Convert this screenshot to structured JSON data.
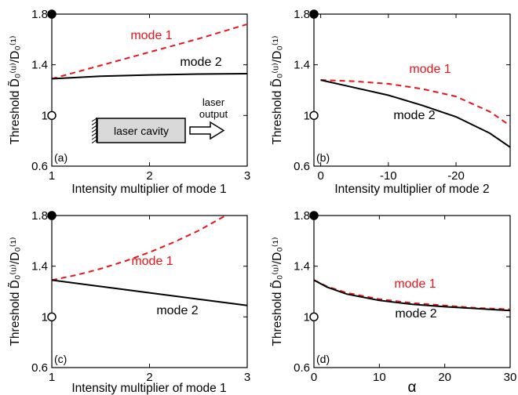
{
  "figure": {
    "ylabel": "Threshold D̃₀⁽ᵘ⁾/D₀⁽¹⁾"
  },
  "chart_data": [
    {
      "type": "line",
      "panel": "(a)",
      "xlabel": "Intensity multiplier of mode 1",
      "ylabel": "Threshold D̃₀⁽ᵘ⁾/D₀⁽¹⁾",
      "xlim": [
        1,
        3
      ],
      "ylim": [
        0.6,
        1.8
      ],
      "xticks": [
        1,
        2,
        3
      ],
      "xtick_labels": [
        "1",
        "2",
        "3"
      ],
      "yticks": [
        0.6,
        1,
        1.4,
        1.8
      ],
      "ytick_labels": [
        "0.6",
        "1",
        "1.4",
        "1.8"
      ],
      "series": [
        {
          "name": "mode 1",
          "color": "#e8141a",
          "style": "dashed",
          "x": [
            1,
            1.5,
            2,
            2.5,
            3
          ],
          "y": [
            1.29,
            1.395,
            1.5,
            1.605,
            1.72
          ]
        },
        {
          "name": "mode 2",
          "color": "#000000",
          "style": "solid",
          "x": [
            1,
            1.5,
            2,
            2.5,
            3
          ],
          "y": [
            1.29,
            1.31,
            1.32,
            1.327,
            1.33
          ]
        }
      ],
      "markers": [
        {
          "x": 1,
          "y": 1.8,
          "fill": "filled"
        },
        {
          "x": 1,
          "y": 1.0,
          "fill": "open"
        }
      ],
      "annotations": {
        "mode1": "mode 1",
        "mode2": "mode 2",
        "cavity": "laser cavity",
        "output_line1": "laser",
        "output_line2": "output"
      }
    },
    {
      "type": "line",
      "panel": "(b)",
      "xlabel": "Intensity multiplier of mode 2",
      "ylabel": "Threshold D̃₀⁽ᵘ⁾/D₀⁽¹⁾",
      "xlim": [
        1,
        -28
      ],
      "ylim": [
        0.6,
        1.8
      ],
      "xticks": [
        0,
        -10,
        -20
      ],
      "xtick_labels": [
        "0",
        "-10",
        "-20"
      ],
      "yticks": [
        0.6,
        1,
        1.4,
        1.8
      ],
      "ytick_labels": [
        "0.6",
        "1",
        "1.4",
        "1.8"
      ],
      "series": [
        {
          "name": "mode 1",
          "color": "#e8141a",
          "style": "dashed",
          "x": [
            0,
            -5,
            -10,
            -15,
            -20,
            -25,
            -28
          ],
          "y": [
            1.28,
            1.27,
            1.25,
            1.21,
            1.15,
            1.03,
            0.92
          ]
        },
        {
          "name": "mode 2",
          "color": "#000000",
          "style": "solid",
          "x": [
            0,
            -5,
            -10,
            -15,
            -20,
            -25,
            -28
          ],
          "y": [
            1.28,
            1.22,
            1.16,
            1.08,
            0.99,
            0.86,
            0.75
          ]
        }
      ],
      "markers": [
        {
          "x": 1,
          "y": 1.8,
          "fill": "filled"
        },
        {
          "x": 1,
          "y": 1.0,
          "fill": "open"
        }
      ],
      "annotations": {
        "mode1": "mode 1",
        "mode2": "mode 2"
      }
    },
    {
      "type": "line",
      "panel": "(c)",
      "xlabel": "Intensity multiplier of mode 1",
      "ylabel": "Threshold D̃₀⁽ᵘ⁾/D₀⁽¹⁾",
      "xlim": [
        1,
        3
      ],
      "ylim": [
        0.6,
        1.8
      ],
      "xticks": [
        1,
        2,
        3
      ],
      "xtick_labels": [
        "1",
        "2",
        "3"
      ],
      "yticks": [
        0.6,
        1,
        1.4,
        1.8
      ],
      "ytick_labels": [
        "0.6",
        "1",
        "1.4",
        "1.8"
      ],
      "series": [
        {
          "name": "mode 1",
          "color": "#e8141a",
          "style": "dashed",
          "x": [
            1,
            1.25,
            1.5,
            1.75,
            2,
            2.25,
            2.5,
            2.78
          ],
          "y": [
            1.29,
            1.33,
            1.38,
            1.44,
            1.51,
            1.59,
            1.68,
            1.8
          ]
        },
        {
          "name": "mode 2",
          "color": "#000000",
          "style": "solid",
          "x": [
            1,
            1.5,
            2,
            2.5,
            3
          ],
          "y": [
            1.29,
            1.24,
            1.19,
            1.14,
            1.09
          ]
        }
      ],
      "markers": [
        {
          "x": 1,
          "y": 1.8,
          "fill": "filled"
        },
        {
          "x": 1,
          "y": 1.0,
          "fill": "open"
        }
      ],
      "annotations": {
        "mode1": "mode 1",
        "mode2": "mode 2"
      }
    },
    {
      "type": "line",
      "panel": "(d)",
      "xlabel": "α",
      "ylabel": "Threshold D̃₀⁽ᵘ⁾/D₀⁽¹⁾",
      "xlim": [
        0,
        30
      ],
      "ylim": [
        0.6,
        1.8
      ],
      "xticks": [
        0,
        10,
        20,
        30
      ],
      "xtick_labels": [
        "0",
        "10",
        "20",
        "30"
      ],
      "yticks": [
        0.6,
        1,
        1.4,
        1.8
      ],
      "ytick_labels": [
        "0.6",
        "1",
        "1.4",
        "1.8"
      ],
      "series": [
        {
          "name": "mode 1",
          "color": "#e8141a",
          "style": "dashed",
          "x": [
            0,
            2,
            5,
            10,
            15,
            20,
            25,
            30
          ],
          "y": [
            1.29,
            1.24,
            1.19,
            1.14,
            1.11,
            1.09,
            1.07,
            1.06
          ]
        },
        {
          "name": "mode 2",
          "color": "#000000",
          "style": "solid",
          "x": [
            0,
            2,
            5,
            10,
            15,
            20,
            25,
            30
          ],
          "y": [
            1.29,
            1.235,
            1.18,
            1.13,
            1.1,
            1.08,
            1.065,
            1.05
          ]
        }
      ],
      "markers": [
        {
          "x": 0,
          "y": 1.8,
          "fill": "filled"
        },
        {
          "x": 0,
          "y": 1.0,
          "fill": "open"
        }
      ],
      "annotations": {
        "mode1": "mode 1",
        "mode2": "mode 2"
      }
    }
  ]
}
